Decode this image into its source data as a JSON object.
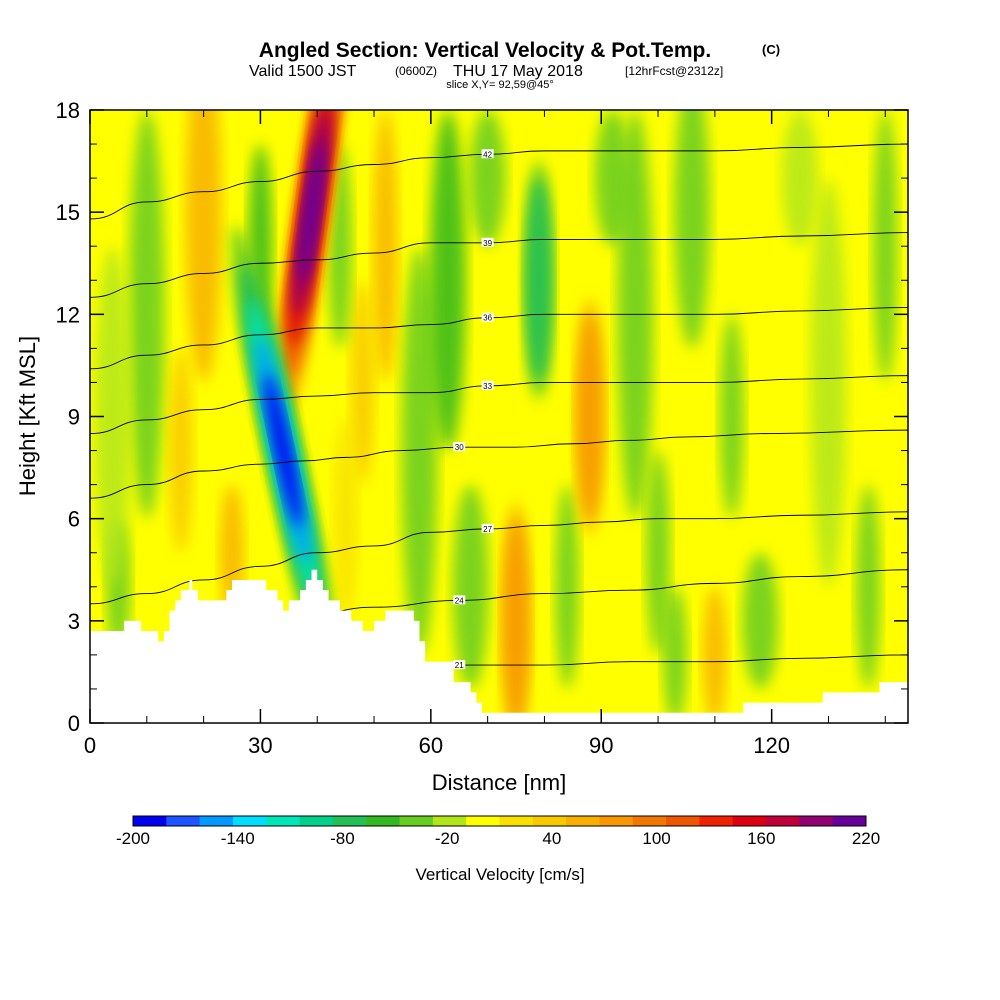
{
  "chart_data": {
    "type": "heatmap",
    "title": "Angled Section: Vertical Velocity & Pot.Temp.",
    "title_tag": "(C)",
    "subtitle_prefix": "Valid 1500 JST",
    "subtitle_zulu": "(0600Z)",
    "subtitle_date": "THU 17 May 2018",
    "subtitle_fcst": "[12hrFcst@2312z]",
    "slice_note": "slice X,Y= 92,59@45°",
    "xlabel": "Distance [nm]",
    "ylabel": "Height [Kft MSL]",
    "xlim": [
      0,
      144
    ],
    "ylim": [
      0,
      18
    ],
    "xticks": [
      0,
      30,
      60,
      90,
      120
    ],
    "yticks": [
      0,
      3,
      6,
      9,
      12,
      15,
      18
    ],
    "colorbar_label": "Vertical Velocity [cm/s]",
    "colorbar_tick_labels": [
      "-200",
      "-140",
      "-80",
      "-20",
      "40",
      "100",
      "160",
      "220"
    ],
    "colorbar_ticks": [
      -200,
      -140,
      -80,
      -20,
      40,
      100,
      160,
      220
    ],
    "levels": [
      -200,
      -180,
      -160,
      -140,
      -120,
      -100,
      -80,
      -60,
      -40,
      -20,
      0,
      20,
      40,
      60,
      80,
      100,
      120,
      140,
      160,
      180,
      200,
      220
    ],
    "colors": [
      "#0000ee",
      "#1c55ff",
      "#0099ff",
      "#00ddff",
      "#00e6b8",
      "#00d08a",
      "#22c055",
      "#33b81e",
      "#66cc22",
      "#b2e61a",
      "#ffff00",
      "#f8e000",
      "#f8c800",
      "#f8b000",
      "#f89800",
      "#f07800",
      "#ee5500",
      "#ee2200",
      "#dd0010",
      "#c0003a",
      "#900070",
      "#660099"
    ],
    "features": [
      {
        "kind": "updraft",
        "x": 39,
        "y": 15,
        "peak": 220
      },
      {
        "kind": "downdraft",
        "x": 34,
        "y": 8,
        "peak": -200
      },
      {
        "kind": "updraft",
        "x": 75,
        "y": 3,
        "peak": 110
      },
      {
        "kind": "updraft",
        "x": 88,
        "y": 9,
        "peak": 80
      },
      {
        "kind": "downdraft",
        "x": 79,
        "y": 13,
        "peak": -90
      }
    ],
    "terrain": [
      [
        0,
        2.7
      ],
      [
        4,
        2.7
      ],
      [
        6,
        3.0
      ],
      [
        8,
        3.0
      ],
      [
        9,
        2.7
      ],
      [
        11,
        2.7
      ],
      [
        12,
        2.4
      ],
      [
        13,
        2.7
      ],
      [
        14,
        3.3
      ],
      [
        15,
        3.6
      ],
      [
        16,
        3.9
      ],
      [
        17,
        3.9
      ],
      [
        17.5,
        4.2
      ],
      [
        18,
        3.9
      ],
      [
        19,
        3.6
      ],
      [
        20,
        3.6
      ],
      [
        23,
        3.6
      ],
      [
        24,
        3.9
      ],
      [
        25,
        4.2
      ],
      [
        30,
        4.2
      ],
      [
        31,
        3.9
      ],
      [
        33,
        3.6
      ],
      [
        34,
        3.3
      ],
      [
        35,
        3.6
      ],
      [
        37,
        3.9
      ],
      [
        38,
        4.2
      ],
      [
        39,
        4.5
      ],
      [
        40,
        4.2
      ],
      [
        41,
        3.9
      ],
      [
        42,
        3.6
      ],
      [
        44,
        3.3
      ],
      [
        46,
        3.0
      ],
      [
        48,
        2.7
      ],
      [
        50,
        3.0
      ],
      [
        52,
        3.3
      ],
      [
        57,
        3.0
      ],
      [
        58,
        2.4
      ],
      [
        59,
        1.8
      ],
      [
        63,
        1.8
      ],
      [
        64,
        1.2
      ],
      [
        67,
        0.9
      ],
      [
        68,
        0.6
      ],
      [
        69,
        0.3
      ],
      [
        76,
        0.3
      ],
      [
        102,
        0.3
      ],
      [
        114,
        0.3
      ],
      [
        115,
        0.6
      ],
      [
        128,
        0.6
      ],
      [
        129,
        0.9
      ],
      [
        138,
        0.9
      ],
      [
        139,
        1.2
      ],
      [
        144,
        1.2
      ]
    ],
    "theta_isentropes": [
      {
        "label": "21",
        "pts": [
          [
            0,
            0.5
          ],
          [
            10,
            0.8
          ],
          [
            20,
            1.2
          ],
          [
            35,
            1.5
          ],
          [
            50,
            1.7
          ],
          [
            65,
            1.7
          ],
          [
            80,
            1.7
          ],
          [
            95,
            1.8
          ],
          [
            110,
            1.8
          ],
          [
            125,
            1.9
          ],
          [
            144,
            2.0
          ]
        ]
      },
      {
        "label": "24",
        "pts": [
          [
            0,
            1.8
          ],
          [
            12,
            2.2
          ],
          [
            22,
            2.6
          ],
          [
            35,
            3.0
          ],
          [
            50,
            3.4
          ],
          [
            65,
            3.6
          ],
          [
            80,
            3.8
          ],
          [
            95,
            3.9
          ],
          [
            110,
            4.1
          ],
          [
            125,
            4.3
          ],
          [
            144,
            4.5
          ]
        ]
      },
      {
        "label": "27",
        "pts": [
          [
            0,
            3.5
          ],
          [
            10,
            3.8
          ],
          [
            20,
            4.2
          ],
          [
            30,
            4.6
          ],
          [
            40,
            5.0
          ],
          [
            50,
            5.2
          ],
          [
            60,
            5.6
          ],
          [
            70,
            5.7
          ],
          [
            80,
            5.8
          ],
          [
            90,
            5.9
          ],
          [
            100,
            6.0
          ],
          [
            110,
            6.0
          ],
          [
            125,
            6.1
          ],
          [
            144,
            6.2
          ]
        ]
      },
      {
        "label": "30",
        "pts": [
          [
            0,
            6.6
          ],
          [
            10,
            7.0
          ],
          [
            20,
            7.4
          ],
          [
            30,
            7.6
          ],
          [
            38,
            7.7
          ],
          [
            45,
            7.8
          ],
          [
            55,
            8.0
          ],
          [
            65,
            8.1
          ],
          [
            75,
            8.1
          ],
          [
            85,
            8.2
          ],
          [
            95,
            8.3
          ],
          [
            105,
            8.4
          ],
          [
            120,
            8.5
          ],
          [
            144,
            8.6
          ]
        ]
      },
      {
        "label": "33",
        "pts": [
          [
            0,
            8.5
          ],
          [
            10,
            8.9
          ],
          [
            20,
            9.2
          ],
          [
            30,
            9.5
          ],
          [
            40,
            9.6
          ],
          [
            50,
            9.7
          ],
          [
            60,
            9.7
          ],
          [
            70,
            9.9
          ],
          [
            80,
            10.0
          ],
          [
            90,
            10.0
          ],
          [
            100,
            10.0
          ],
          [
            110,
            10.0
          ],
          [
            125,
            10.1
          ],
          [
            144,
            10.2
          ]
        ]
      },
      {
        "label": "36",
        "pts": [
          [
            0,
            10.4
          ],
          [
            10,
            10.8
          ],
          [
            20,
            11.1
          ],
          [
            30,
            11.4
          ],
          [
            40,
            11.6
          ],
          [
            50,
            11.6
          ],
          [
            60,
            11.7
          ],
          [
            70,
            11.9
          ],
          [
            80,
            12.0
          ],
          [
            90,
            12.0
          ],
          [
            100,
            12.0
          ],
          [
            110,
            12.0
          ],
          [
            125,
            12.1
          ],
          [
            144,
            12.2
          ]
        ]
      },
      {
        "label": "39",
        "pts": [
          [
            0,
            12.5
          ],
          [
            10,
            12.9
          ],
          [
            20,
            13.2
          ],
          [
            30,
            13.5
          ],
          [
            40,
            13.6
          ],
          [
            50,
            13.8
          ],
          [
            60,
            14.1
          ],
          [
            70,
            14.1
          ],
          [
            80,
            14.2
          ],
          [
            90,
            14.2
          ],
          [
            100,
            14.2
          ],
          [
            110,
            14.2
          ],
          [
            125,
            14.3
          ],
          [
            144,
            14.4
          ]
        ]
      },
      {
        "label": "42",
        "pts": [
          [
            0,
            14.8
          ],
          [
            10,
            15.3
          ],
          [
            20,
            15.6
          ],
          [
            30,
            15.9
          ],
          [
            40,
            16.2
          ],
          [
            50,
            16.4
          ],
          [
            60,
            16.6
          ],
          [
            70,
            16.7
          ],
          [
            80,
            16.8
          ],
          [
            90,
            16.8
          ],
          [
            100,
            16.8
          ],
          [
            110,
            16.8
          ],
          [
            125,
            16.9
          ],
          [
            144,
            17.0
          ]
        ]
      }
    ]
  }
}
